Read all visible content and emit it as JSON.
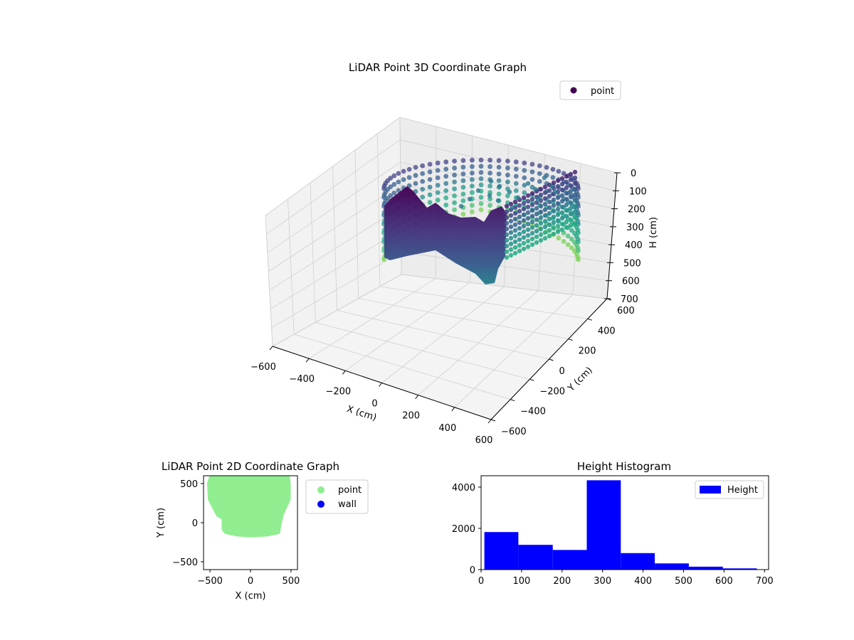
{
  "chart_data": [
    {
      "type": "scatter",
      "title": "LiDAR Point 3D Coordinate Graph",
      "projection": "3d",
      "xlabel": "X (cm)",
      "ylabel": "Y (cm)",
      "zlabel": "H (cm)",
      "xlim": [
        -600,
        600
      ],
      "ylim": [
        -600,
        600
      ],
      "zlim": [
        700,
        0
      ],
      "x_ticks": [
        "−600",
        "−400",
        "−200",
        "0",
        "200",
        "400",
        "600"
      ],
      "y_ticks": [
        "−600",
        "−400",
        "−200",
        "0",
        "200",
        "400",
        "600"
      ],
      "z_ticks": [
        "0",
        "100",
        "200",
        "300",
        "400",
        "500",
        "600",
        "700"
      ],
      "colormap": "viridis",
      "grid": true,
      "legend": {
        "position": "top-right",
        "entries": [
          {
            "label": "point",
            "color": "#440154"
          }
        ]
      },
      "series": [
        {
          "name": "point",
          "description_points": "room outline wall points, ring-shaped, heights 0-400 cm",
          "points": [
            {
              "x": -500,
              "y": -150,
              "h": 30
            },
            {
              "x": -500,
              "y": -150,
              "h": 390
            },
            {
              "x": -400,
              "y": -140,
              "h": 20
            },
            {
              "x": -400,
              "y": -140,
              "h": 380
            },
            {
              "x": -250,
              "y": -170,
              "h": 20
            },
            {
              "x": -250,
              "y": -170,
              "h": 400
            },
            {
              "x": -100,
              "y": -150,
              "h": 30
            },
            {
              "x": -100,
              "y": -150,
              "h": 380
            },
            {
              "x": 50,
              "y": -160,
              "h": 20
            },
            {
              "x": 50,
              "y": -160,
              "h": 390
            },
            {
              "x": 200,
              "y": -150,
              "h": 20
            },
            {
              "x": 200,
              "y": -150,
              "h": 400
            },
            {
              "x": 400,
              "y": -100,
              "h": 30
            },
            {
              "x": 400,
              "y": -100,
              "h": 380
            },
            {
              "x": 450,
              "y": 100,
              "h": 30
            },
            {
              "x": 450,
              "y": 100,
              "h": 350
            },
            {
              "x": 450,
              "y": 300,
              "h": 30
            },
            {
              "x": 450,
              "y": 300,
              "h": 330
            },
            {
              "x": 400,
              "y": 500,
              "h": 30
            },
            {
              "x": 400,
              "y": 500,
              "h": 300
            },
            {
              "x": 200,
              "y": 580,
              "h": 20
            },
            {
              "x": 200,
              "y": 580,
              "h": 260
            },
            {
              "x": 0,
              "y": 600,
              "h": 20
            },
            {
              "x": 0,
              "y": 600,
              "h": 260
            },
            {
              "x": -200,
              "y": 590,
              "h": 20
            },
            {
              "x": -200,
              "y": 590,
              "h": 260
            },
            {
              "x": -400,
              "y": 500,
              "h": 20
            },
            {
              "x": -400,
              "y": 500,
              "h": 300
            },
            {
              "x": -480,
              "y": 300,
              "h": 30
            },
            {
              "x": -480,
              "y": 300,
              "h": 320
            },
            {
              "x": -500,
              "y": 100,
              "h": 30
            },
            {
              "x": -500,
              "y": 100,
              "h": 350
            }
          ]
        }
      ]
    },
    {
      "type": "scatter",
      "title": "LiDAR Point 2D Coordinate Graph",
      "xlabel": "X (cm)",
      "ylabel": "Y (cm)",
      "xlim": [
        -580,
        580
      ],
      "ylim": [
        -600,
        600
      ],
      "x_ticks": [
        "−500",
        "0",
        "500"
      ],
      "y_ticks": [
        "500",
        "0",
        "−500"
      ],
      "legend": {
        "position": "outside-right",
        "entries": [
          {
            "label": "point",
            "color": "#90ee90"
          },
          {
            "label": "wall",
            "color": "#0000ff"
          }
        ]
      },
      "series": [
        {
          "name": "point",
          "color": "#90ee90",
          "outline": [
            [
              -480,
              600
            ],
            [
              -510,
              500
            ],
            [
              -500,
              300
            ],
            [
              -440,
              180
            ],
            [
              -400,
              100
            ],
            [
              -330,
              60
            ],
            [
              -330,
              -80
            ],
            [
              -300,
              -120
            ],
            [
              -150,
              -150
            ],
            [
              0,
              -160
            ],
            [
              200,
              -150
            ],
            [
              340,
              -120
            ],
            [
              360,
              0
            ],
            [
              390,
              120
            ],
            [
              470,
              300
            ],
            [
              470,
              500
            ],
            [
              460,
              600
            ]
          ]
        },
        {
          "name": "wall",
          "color": "#0000ff",
          "points": []
        }
      ]
    },
    {
      "type": "bar",
      "title": "Height Histogram",
      "xlabel": "",
      "ylabel": "",
      "xlim": [
        0,
        710
      ],
      "ylim": [
        0,
        4550
      ],
      "x_ticks": [
        "0",
        "100",
        "200",
        "300",
        "400",
        "500",
        "600",
        "700"
      ],
      "y_ticks": [
        "0",
        "2000",
        "4000"
      ],
      "legend": {
        "position": "top-right",
        "entries": [
          {
            "label": "Height",
            "color": "#0000ff"
          }
        ]
      },
      "series": [
        {
          "name": "Height",
          "color": "#0000ff",
          "bins": [
            {
              "x0": 8,
              "x1": 92,
              "count": 1820
            },
            {
              "x0": 92,
              "x1": 177,
              "count": 1200
            },
            {
              "x0": 177,
              "x1": 261,
              "count": 950
            },
            {
              "x0": 261,
              "x1": 345,
              "count": 4330
            },
            {
              "x0": 345,
              "x1": 429,
              "count": 800
            },
            {
              "x0": 429,
              "x1": 513,
              "count": 300
            },
            {
              "x0": 513,
              "x1": 597,
              "count": 140
            },
            {
              "x0": 597,
              "x1": 681,
              "count": 60
            }
          ]
        }
      ]
    }
  ]
}
